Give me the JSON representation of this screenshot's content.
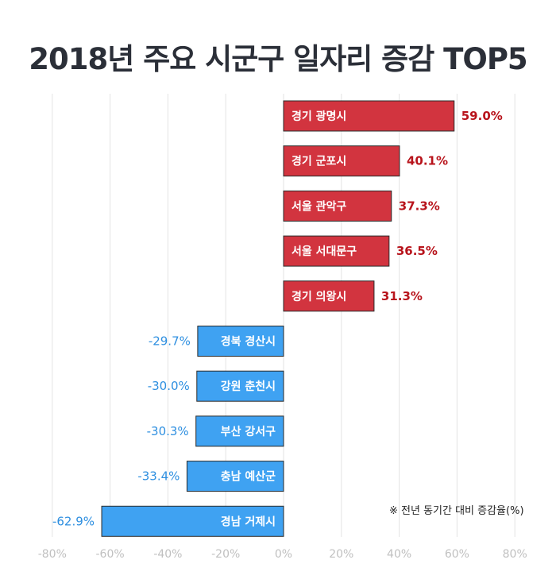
{
  "title": "2018년 주요 시군구 일자리 증감 TOP5",
  "note": "※ 전년 동기간 대비 증감율(%)",
  "colors": {
    "positive_bar": "#d2343f",
    "positive_label": "#b8141c",
    "negative_bar": "#3fa2f2",
    "negative_label": "#2e8fe0",
    "grid": "#e3e3e3",
    "tick": "#c0c0c0"
  },
  "chart_data": {
    "type": "bar",
    "orientation": "horizontal",
    "title": "2018년 주요 시군구 일자리 증감 TOP5",
    "xlabel": "",
    "ylabel": "",
    "xlim": [
      -80,
      80
    ],
    "ticks": [
      "-80%",
      "-60%",
      "-40%",
      "-20%",
      "0%",
      "20%",
      "40%",
      "60%",
      "80%"
    ],
    "categories": [
      "경기 광명시",
      "경기 군포시",
      "서울 관악구",
      "서울 서대문구",
      "경기 의왕시",
      "경북 경산시",
      "강원 춘천시",
      "부산 강서구",
      "충남 예산군",
      "경남 거제시"
    ],
    "values": [
      59.0,
      40.1,
      37.3,
      36.5,
      31.3,
      -29.7,
      -30.0,
      -30.3,
      -33.4,
      -62.9
    ],
    "value_labels": [
      "59.0%",
      "40.1%",
      "37.3%",
      "36.5%",
      "31.3%",
      "-29.7%",
      "-30.0%",
      "-30.3%",
      "-33.4%",
      "-62.9%"
    ],
    "grid": true
  }
}
